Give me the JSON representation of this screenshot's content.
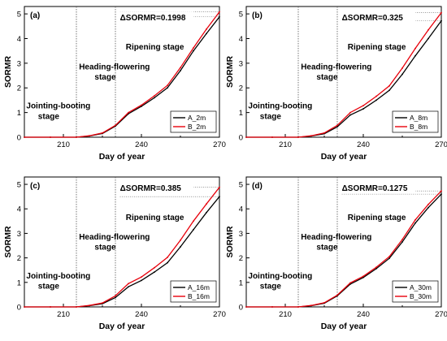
{
  "chart_data": [
    {
      "type": "line",
      "panel": "(a)",
      "delta": "ΔSORMR=0.1998",
      "xlabel": "Day of year",
      "ylabel": "SORMR",
      "xlim": [
        195,
        270
      ],
      "ylim": [
        0,
        5.3
      ],
      "xticks": [
        210,
        240,
        270
      ],
      "yticks": [
        0,
        1,
        2,
        3,
        4,
        5
      ],
      "vlines": [
        215,
        230
      ],
      "stages": [
        "Jointing-booting",
        "stage",
        "Heading-flowering",
        "stage",
        "Ripening stage"
      ],
      "series": [
        {
          "name": "A_2m",
          "color": "#000000",
          "x": [
            195,
            205,
            215,
            220,
            225,
            230,
            235,
            240,
            245,
            250,
            255,
            260,
            265,
            270
          ],
          "y": [
            0,
            0,
            0,
            0.05,
            0.15,
            0.45,
            0.95,
            1.25,
            1.6,
            2.0,
            2.7,
            3.5,
            4.2,
            4.88
          ]
        },
        {
          "name": "B_2m",
          "color": "#e8000b",
          "x": [
            195,
            205,
            215,
            220,
            225,
            230,
            235,
            240,
            245,
            250,
            255,
            260,
            265,
            270
          ],
          "y": [
            0,
            0,
            0,
            0.06,
            0.17,
            0.48,
            1.0,
            1.3,
            1.68,
            2.1,
            2.82,
            3.62,
            4.38,
            5.08
          ]
        }
      ]
    },
    {
      "type": "line",
      "panel": "(b)",
      "delta": "ΔSORMR=0.325",
      "xlabel": "Day of year",
      "ylabel": "SORMR",
      "xlim": [
        195,
        270
      ],
      "ylim": [
        0,
        5.3
      ],
      "xticks": [
        210,
        240,
        270
      ],
      "yticks": [
        0,
        1,
        2,
        3,
        4,
        5
      ],
      "vlines": [
        215,
        230
      ],
      "stages": [
        "Jointing-booting",
        "stage",
        "Heading-flowering",
        "stage",
        "Ripening stage"
      ],
      "series": [
        {
          "name": "A_8m",
          "color": "#000000",
          "x": [
            195,
            205,
            215,
            220,
            225,
            230,
            235,
            240,
            245,
            250,
            255,
            260,
            265,
            270
          ],
          "y": [
            0,
            0,
            0,
            0.05,
            0.14,
            0.42,
            0.9,
            1.15,
            1.5,
            1.9,
            2.55,
            3.3,
            4.0,
            4.72
          ]
        },
        {
          "name": "B_8m",
          "color": "#e8000b",
          "x": [
            195,
            205,
            215,
            220,
            225,
            230,
            235,
            240,
            245,
            250,
            255,
            260,
            265,
            270
          ],
          "y": [
            0,
            0,
            0,
            0.06,
            0.17,
            0.48,
            1.0,
            1.28,
            1.66,
            2.08,
            2.8,
            3.6,
            4.35,
            5.05
          ]
        }
      ]
    },
    {
      "type": "line",
      "panel": "(c)",
      "delta": "ΔSORMR=0.385",
      "xlabel": "Day of year",
      "ylabel": "SORMR",
      "xlim": [
        195,
        270
      ],
      "ylim": [
        0,
        5.3
      ],
      "xticks": [
        210,
        240,
        270
      ],
      "yticks": [
        0,
        1,
        2,
        3,
        4,
        5
      ],
      "vlines": [
        215,
        230
      ],
      "stages": [
        "Jointing-booting",
        "stage",
        "Heading-flowering",
        "stage",
        "Ripening stage"
      ],
      "series": [
        {
          "name": "A_16m",
          "color": "#000000",
          "x": [
            195,
            205,
            215,
            220,
            225,
            230,
            235,
            240,
            245,
            250,
            255,
            260,
            265,
            270
          ],
          "y": [
            0,
            0,
            0,
            0.05,
            0.13,
            0.38,
            0.82,
            1.08,
            1.42,
            1.8,
            2.45,
            3.15,
            3.85,
            4.5
          ]
        },
        {
          "name": "B_16m",
          "color": "#e8000b",
          "x": [
            195,
            205,
            215,
            220,
            225,
            230,
            235,
            240,
            245,
            250,
            255,
            260,
            265,
            270
          ],
          "y": [
            0,
            0,
            0,
            0.06,
            0.16,
            0.45,
            0.95,
            1.22,
            1.6,
            2.02,
            2.72,
            3.5,
            4.2,
            4.88
          ]
        }
      ]
    },
    {
      "type": "line",
      "panel": "(d)",
      "delta": "ΔSORMR=0.1275",
      "xlabel": "Day of year",
      "ylabel": "SORMR",
      "xlim": [
        195,
        270
      ],
      "ylim": [
        0,
        5.3
      ],
      "xticks": [
        210,
        240,
        270
      ],
      "yticks": [
        0,
        1,
        2,
        3,
        4,
        5
      ],
      "vlines": [
        215,
        230
      ],
      "stages": [
        "Jointing-booting",
        "stage",
        "Heading-flowering",
        "stage",
        "Ripening stage"
      ],
      "series": [
        {
          "name": "A_30m",
          "color": "#000000",
          "x": [
            195,
            205,
            215,
            220,
            225,
            230,
            235,
            240,
            245,
            250,
            255,
            260,
            265,
            270
          ],
          "y": [
            0,
            0,
            0,
            0.05,
            0.15,
            0.45,
            0.93,
            1.2,
            1.56,
            1.98,
            2.65,
            3.42,
            4.05,
            4.6
          ]
        },
        {
          "name": "B_30m",
          "color": "#e8000b",
          "x": [
            195,
            205,
            215,
            220,
            225,
            230,
            235,
            240,
            245,
            250,
            255,
            260,
            265,
            270
          ],
          "y": [
            0,
            0,
            0,
            0.06,
            0.17,
            0.48,
            0.98,
            1.25,
            1.62,
            2.05,
            2.75,
            3.55,
            4.18,
            4.73
          ]
        }
      ]
    }
  ]
}
